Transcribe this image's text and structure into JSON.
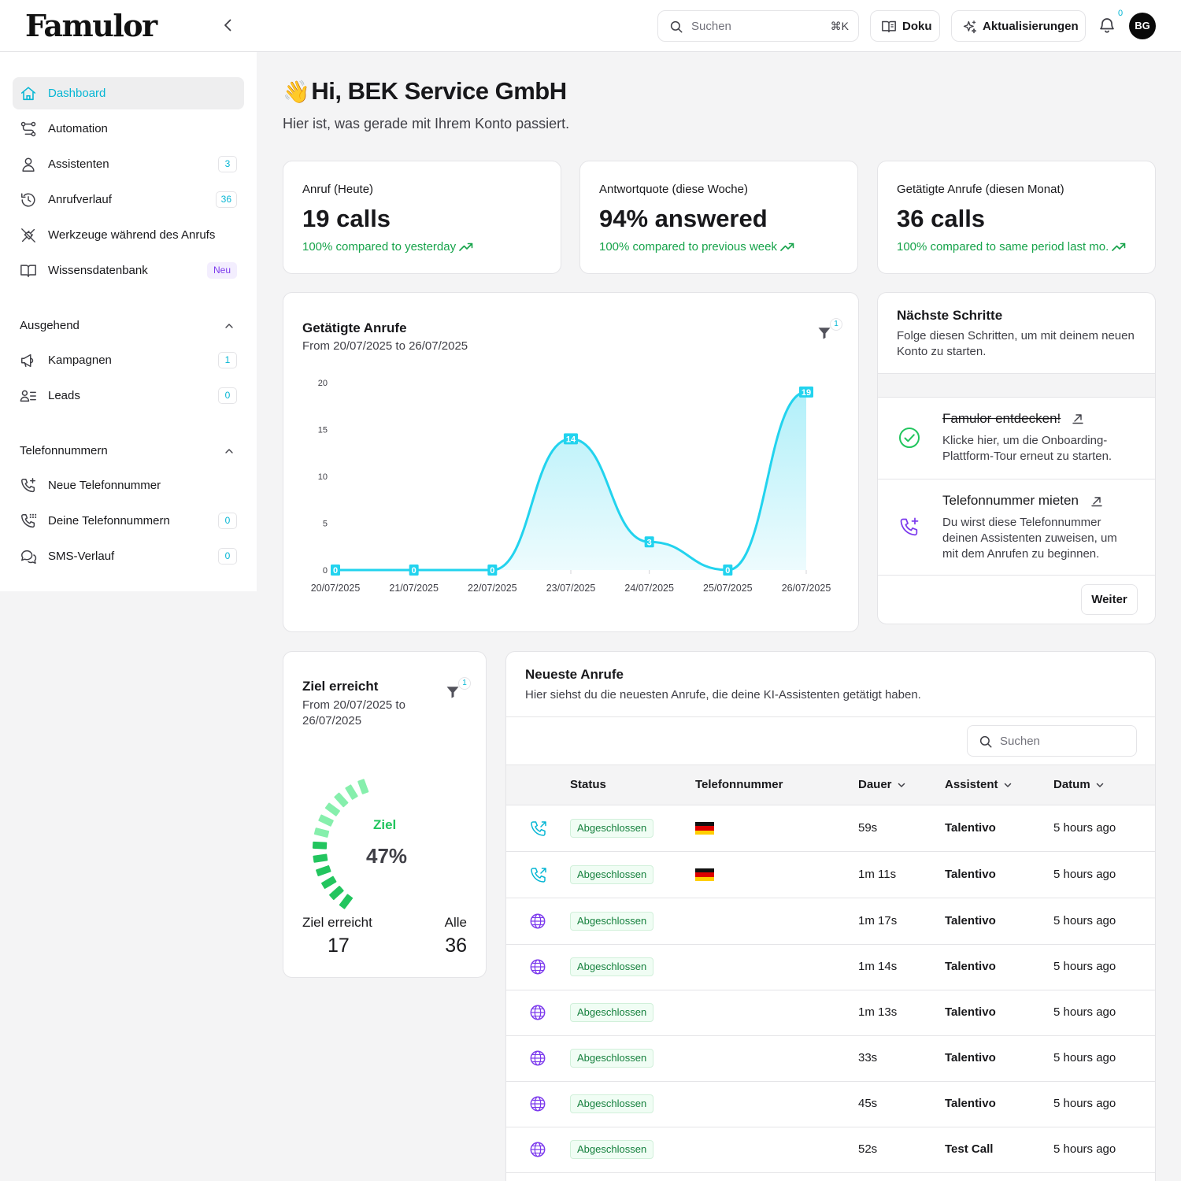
{
  "app": {
    "logo": "Famulor",
    "search_placeholder": "Suchen",
    "search_shortcut": "⌘K",
    "doku_label": "Doku",
    "updates_label": "Aktualisierungen",
    "notifications_count": "0",
    "avatar_initials": "BG"
  },
  "icons": {
    "logo": "wordmark",
    "collapse": "chevron-left-icon",
    "search": "search-icon",
    "doku": "book-open-icon",
    "updates": "sparkles-icon",
    "notifications": "bell-icon",
    "filter": "funnel-icon"
  },
  "colors": {
    "accent": "#06b6d4",
    "success": "#16a34a",
    "chart_line": "#22d3ee",
    "goal": "#22c55e",
    "purple": "#7c3aed"
  },
  "sidebar": {
    "items": [
      {
        "label": "Dashboard",
        "icon": "home-icon",
        "active": true
      },
      {
        "label": "Automation",
        "icon": "workflow-icon"
      },
      {
        "label": "Assistenten",
        "icon": "user-icon",
        "count": "3"
      },
      {
        "label": "Anrufverlauf",
        "icon": "history-icon",
        "count": "36"
      },
      {
        "label": "Werkzeuge während des Anrufs",
        "icon": "plug-icon"
      },
      {
        "label": "Wissensdatenbank",
        "icon": "book-icon",
        "tag": "Neu"
      }
    ],
    "outbound": {
      "title": "Ausgehend",
      "items": [
        {
          "label": "Kampagnen",
          "icon": "megaphone-icon",
          "count": "1"
        },
        {
          "label": "Leads",
          "icon": "users-list-icon",
          "count": "0"
        }
      ]
    },
    "phone": {
      "title": "Telefonnummern",
      "items": [
        {
          "label": "Neue Telefonnummer",
          "icon": "phone-plus-icon"
        },
        {
          "label": "Deine Telefonnummern",
          "icon": "phone-grid-icon",
          "count": "0"
        },
        {
          "label": "SMS-Verlauf",
          "icon": "chat-icon",
          "count": "0"
        }
      ]
    }
  },
  "greeting": {
    "emoji": "👋",
    "title": "Hi, BEK Service GmbH",
    "subtitle": "Hier ist, was gerade mit Ihrem Konto passiert."
  },
  "stats": [
    {
      "label": "Anruf (Heute)",
      "value": "19 calls",
      "trend": "100% compared to yesterday"
    },
    {
      "label": "Antwortquote (diese Woche)",
      "value": "94% answered",
      "trend": "100% compared to previous week"
    },
    {
      "label": "Getätigte Anrufe (diesen Monat)",
      "value": "36 calls",
      "trend": "100% compared to same period last mo."
    }
  ],
  "calls_chart": {
    "filter_count": "1"
  },
  "chart_data": {
    "type": "area",
    "title": "Getätigte Anrufe",
    "subtitle": "From 20/07/2025 to 26/07/2025",
    "x": [
      "20/07/2025",
      "21/07/2025",
      "22/07/2025",
      "23/07/2025",
      "24/07/2025",
      "25/07/2025",
      "26/07/2025"
    ],
    "series": [
      {
        "values": [
          0,
          0,
          0,
          14,
          3,
          0,
          19
        ]
      }
    ],
    "ylim": [
      0,
      20
    ],
    "yticks": [
      0,
      5,
      10,
      15,
      20
    ],
    "grid": false,
    "data_labels": true
  },
  "next_steps": {
    "title": "Nächste Schritte",
    "description": "Folge diesen Schritten, um mit deinem neuen Konto zu starten.",
    "steps": [
      {
        "title": "Famulor entdecken!",
        "text": "Klicke hier, um die Onboarding-Plattform-Tour erneut zu starten.",
        "done": true
      },
      {
        "title": "Telefonnummer mieten",
        "text": "Du wirst diese Telefonnummer deinen Assistenten zuweisen, um mit dem Anrufen zu beginnen.",
        "done": false
      }
    ],
    "button": "Weiter"
  },
  "goal": {
    "title": "Ziel erreicht",
    "subtitle": "From 20/07/2025 to 26/07/2025",
    "filter_count": "1",
    "center_label": "Ziel",
    "percent": "47%",
    "percent_value": 0.47,
    "reached_label": "Ziel erreicht",
    "reached_value": "17",
    "all_label": "Alle",
    "all_value": "36"
  },
  "recent_calls": {
    "title": "Neueste Anrufe",
    "description": "Hier siehst du die neuesten Anrufe, die deine KI-Assistenten getätigt haben.",
    "search_placeholder": "Suchen",
    "columns": [
      "Status",
      "Telefonnummer",
      "Dauer",
      "Assistent",
      "Datum"
    ],
    "rows": [
      {
        "type": "phone",
        "status": "Abgeschlossen",
        "flag": "de",
        "duration": "59s",
        "assistant": "Talentivo",
        "date": "5 hours ago"
      },
      {
        "type": "phone",
        "status": "Abgeschlossen",
        "flag": "de",
        "duration": "1m 11s",
        "assistant": "Talentivo",
        "date": "5 hours ago"
      },
      {
        "type": "web",
        "status": "Abgeschlossen",
        "flag": "",
        "duration": "1m 17s",
        "assistant": "Talentivo",
        "date": "5 hours ago"
      },
      {
        "type": "web",
        "status": "Abgeschlossen",
        "flag": "",
        "duration": "1m 14s",
        "assistant": "Talentivo",
        "date": "5 hours ago"
      },
      {
        "type": "web",
        "status": "Abgeschlossen",
        "flag": "",
        "duration": "1m 13s",
        "assistant": "Talentivo",
        "date": "5 hours ago"
      },
      {
        "type": "web",
        "status": "Abgeschlossen",
        "flag": "",
        "duration": "33s",
        "assistant": "Talentivo",
        "date": "5 hours ago"
      },
      {
        "type": "web",
        "status": "Abgeschlossen",
        "flag": "",
        "duration": "45s",
        "assistant": "Talentivo",
        "date": "5 hours ago"
      },
      {
        "type": "web",
        "status": "Abgeschlossen",
        "flag": "",
        "duration": "52s",
        "assistant": "Test Call",
        "date": "5 hours ago"
      }
    ]
  }
}
